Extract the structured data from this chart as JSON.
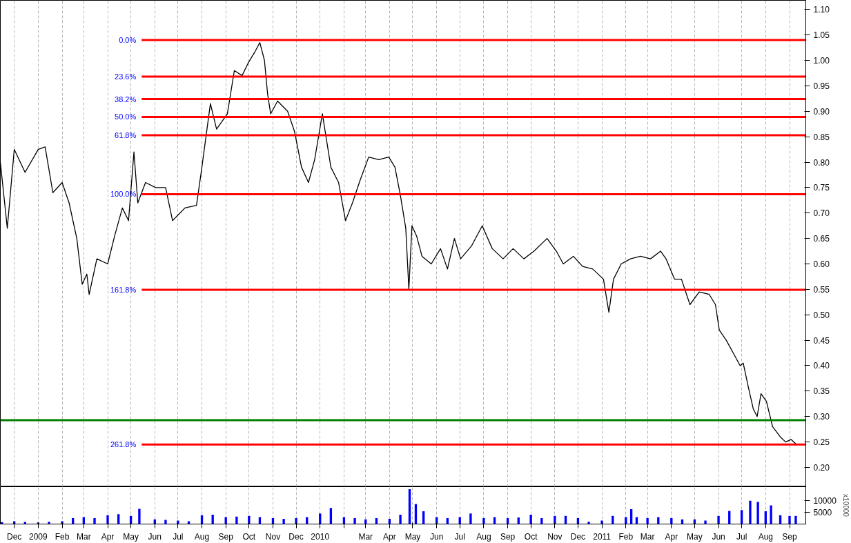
{
  "chart_data": [
    {
      "type": "line",
      "tick_labels": "y",
      "grid": "x",
      "xlim": [
        "2008-11-13",
        "2011-09-22"
      ],
      "ylim": [
        0.162,
        1.118
      ],
      "yticks": [
        {
          "value": 0.2,
          "label": "0.20"
        },
        {
          "value": 0.25,
          "label": "0.25"
        },
        {
          "value": 0.3,
          "label": "0.30"
        },
        {
          "value": 0.35,
          "label": "0.35"
        },
        {
          "value": 0.4,
          "label": "0.40"
        },
        {
          "value": 0.45,
          "label": "0.45"
        },
        {
          "value": 0.5,
          "label": "0.50"
        },
        {
          "value": 0.55,
          "label": "0.55"
        },
        {
          "value": 0.6,
          "label": "0.60"
        },
        {
          "value": 0.65,
          "label": "0.65"
        },
        {
          "value": 0.7,
          "label": "0.70"
        },
        {
          "value": 0.75,
          "label": "0.75"
        },
        {
          "value": 0.8,
          "label": "0.80"
        },
        {
          "value": 0.85,
          "label": "0.85"
        },
        {
          "value": 0.9,
          "label": "0.90"
        },
        {
          "value": 0.95,
          "label": "0.95"
        },
        {
          "value": 1.0,
          "label": "1.00"
        },
        {
          "value": 1.05,
          "label": "1.05"
        },
        {
          "value": 1.1,
          "label": "1.10"
        }
      ],
      "xticks": [
        {
          "value": "2008-12-01",
          "label": null
        },
        {
          "value": "2009-01-01",
          "label": null
        },
        {
          "value": "2009-02-01",
          "label": null
        },
        {
          "value": "2009-03-01",
          "label": null
        },
        {
          "value": "2009-04-01",
          "label": null
        },
        {
          "value": "2009-05-01",
          "label": null
        },
        {
          "value": "2009-06-01",
          "label": null
        },
        {
          "value": "2009-07-01",
          "label": null
        },
        {
          "value": "2009-08-01",
          "label": null
        },
        {
          "value": "2009-09-01",
          "label": null
        },
        {
          "value": "2009-10-01",
          "label": null
        },
        {
          "value": "2009-11-01",
          "label": null
        },
        {
          "value": "2009-12-01",
          "label": null
        },
        {
          "value": "2010-01-01",
          "label": null
        },
        {
          "value": "2010-02-01",
          "label": null
        },
        {
          "value": "2010-03-01",
          "label": null
        },
        {
          "value": "2010-04-01",
          "label": null
        },
        {
          "value": "2010-05-01",
          "label": null
        },
        {
          "value": "2010-06-01",
          "label": null
        },
        {
          "value": "2010-07-01",
          "label": null
        },
        {
          "value": "2010-08-01",
          "label": null
        },
        {
          "value": "2010-09-01",
          "label": null
        },
        {
          "value": "2010-10-01",
          "label": null
        },
        {
          "value": "2010-11-01",
          "label": null
        },
        {
          "value": "2010-12-01",
          "label": null
        },
        {
          "value": "2011-01-01",
          "label": null
        },
        {
          "value": "2011-02-01",
          "label": null
        },
        {
          "value": "2011-03-01",
          "label": null
        },
        {
          "value": "2011-04-01",
          "label": null
        },
        {
          "value": "2011-05-01",
          "label": null
        },
        {
          "value": "2011-06-01",
          "label": null
        },
        {
          "value": "2011-07-01",
          "label": null
        },
        {
          "value": "2011-08-01",
          "label": null
        },
        {
          "value": "2011-09-01",
          "label": null
        }
      ],
      "series": [
        {
          "color": "#000000",
          "x": [
            "2008-11-13",
            "2008-11-22",
            "2008-12-01",
            "2008-12-15",
            "2009-01-01",
            "2009-01-10",
            "2009-01-20",
            "2009-02-01",
            "2009-02-10",
            "2009-02-20",
            "2009-02-27",
            "2009-03-05",
            "2009-03-08",
            "2009-03-18",
            "2009-04-01",
            "2009-04-10",
            "2009-04-20",
            "2009-04-28",
            "2009-05-05",
            "2009-05-10",
            "2009-05-20",
            "2009-06-02",
            "2009-06-15",
            "2009-06-24",
            "2009-07-10",
            "2009-07-25",
            "2009-08-01",
            "2009-08-12",
            "2009-08-20",
            "2009-09-03",
            "2009-09-12",
            "2009-09-22",
            "2009-09-30",
            "2009-10-08",
            "2009-10-15",
            "2009-10-21",
            "2009-10-25",
            "2009-10-29",
            "2009-11-07",
            "2009-11-20",
            "2009-11-29",
            "2009-12-08",
            "2009-12-17",
            "2009-12-25",
            "2010-01-04",
            "2010-01-15",
            "2010-01-25",
            "2010-02-03",
            "2010-02-12",
            "2010-02-22",
            "2010-03-05",
            "2010-03-18",
            "2010-03-31",
            "2010-04-08",
            "2010-04-15",
            "2010-04-22",
            "2010-04-26",
            "2010-04-30",
            "2010-05-06",
            "2010-05-13",
            "2010-05-25",
            "2010-06-06",
            "2010-06-15",
            "2010-06-24",
            "2010-07-02",
            "2010-07-16",
            "2010-07-30",
            "2010-08-12",
            "2010-08-26",
            "2010-09-08",
            "2010-09-22",
            "2010-10-05",
            "2010-10-22",
            "2010-11-03",
            "2010-11-12",
            "2010-11-25",
            "2010-12-07",
            "2010-12-20",
            "2011-01-03",
            "2011-01-10",
            "2011-01-16",
            "2011-01-26",
            "2011-02-07",
            "2011-02-20",
            "2011-03-05",
            "2011-03-18",
            "2011-03-25",
            "2011-04-05",
            "2011-04-14",
            "2011-04-25",
            "2011-05-07",
            "2011-05-20",
            "2011-05-28",
            "2011-06-02",
            "2011-06-11",
            "2011-06-20",
            "2011-06-29",
            "2011-07-03",
            "2011-07-10",
            "2011-07-16",
            "2011-07-21",
            "2011-07-26",
            "2011-08-02",
            "2011-08-10",
            "2011-08-20",
            "2011-08-27",
            "2011-09-03",
            "2011-09-10"
          ],
          "values": [
            0.8,
            0.67,
            0.825,
            0.78,
            0.825,
            0.83,
            0.74,
            0.76,
            0.72,
            0.65,
            0.56,
            0.58,
            0.54,
            0.61,
            0.6,
            0.655,
            0.71,
            0.685,
            0.82,
            0.72,
            0.76,
            0.75,
            0.75,
            0.685,
            0.71,
            0.715,
            0.79,
            0.915,
            0.865,
            0.895,
            0.98,
            0.97,
            0.995,
            1.015,
            1.035,
            1.0,
            0.935,
            0.895,
            0.92,
            0.9,
            0.86,
            0.79,
            0.76,
            0.805,
            0.895,
            0.79,
            0.76,
            0.685,
            0.72,
            0.765,
            0.81,
            0.805,
            0.81,
            0.79,
            0.735,
            0.67,
            0.55,
            0.675,
            0.655,
            0.615,
            0.6,
            0.63,
            0.59,
            0.65,
            0.61,
            0.635,
            0.675,
            0.63,
            0.61,
            0.63,
            0.61,
            0.625,
            0.65,
            0.625,
            0.6,
            0.615,
            0.595,
            0.59,
            0.57,
            0.505,
            0.57,
            0.6,
            0.61,
            0.615,
            0.61,
            0.625,
            0.61,
            0.57,
            0.57,
            0.52,
            0.545,
            0.54,
            0.52,
            0.47,
            0.45,
            0.425,
            0.4,
            0.405,
            0.355,
            0.315,
            0.3,
            0.345,
            0.33,
            0.28,
            0.26,
            0.25,
            0.255,
            0.245
          ]
        },
        {
          "color": "#ff0000",
          "x": [
            "2009-05-15",
            "2011-09-22"
          ],
          "values": [
            1.04,
            1.04
          ]
        },
        {
          "color": "#ff0000",
          "x": [
            "2009-05-15",
            "2011-09-22"
          ],
          "values": [
            0.968,
            0.968
          ]
        },
        {
          "color": "#ff0000",
          "x": [
            "2009-05-15",
            "2011-09-22"
          ],
          "values": [
            0.924,
            0.924
          ]
        },
        {
          "color": "#ff0000",
          "x": [
            "2009-05-15",
            "2011-09-22"
          ],
          "values": [
            0.889,
            0.889
          ]
        },
        {
          "color": "#ff0000",
          "x": [
            "2009-05-15",
            "2011-09-22"
          ],
          "values": [
            0.853,
            0.853
          ]
        },
        {
          "color": "#ff0000",
          "x": [
            "2009-05-15",
            "2011-09-22"
          ],
          "values": [
            0.737,
            0.737
          ]
        },
        {
          "color": "#ff0000",
          "x": [
            "2009-05-15",
            "2011-09-22"
          ],
          "values": [
            0.549,
            0.549
          ]
        },
        {
          "color": "#ff0000",
          "x": [
            "2009-05-15",
            "2011-09-22"
          ],
          "values": [
            0.245,
            0.245
          ]
        }
      ],
      "ref_lines": [
        {
          "axis": "y",
          "value": 0.293,
          "color": "#008000"
        }
      ],
      "annotations": [
        {
          "text": "0.0%",
          "x": "2009-05-15",
          "y": 1.04
        },
        {
          "text": "23.6%",
          "x": "2009-05-15",
          "y": 0.968
        },
        {
          "text": "38.2%",
          "x": "2009-05-15",
          "y": 0.924
        },
        {
          "text": "50.0%",
          "x": "2009-05-15",
          "y": 0.889
        },
        {
          "text": "61.8%",
          "x": "2009-05-15",
          "y": 0.853
        },
        {
          "text": "100.0%",
          "x": "2009-05-15",
          "y": 0.737
        },
        {
          "text": "161.8%",
          "x": "2009-05-15",
          "y": 0.549
        },
        {
          "text": "261.8%",
          "x": "2009-05-15",
          "y": 0.245
        }
      ]
    },
    {
      "type": "bar",
      "grid": "x",
      "color": "#0000ff",
      "ylabel": "x10000",
      "xlim": [
        "2008-11-13",
        "2011-09-22"
      ],
      "ylim": [
        0,
        16000
      ],
      "yticks": [
        5000,
        10000
      ],
      "xticks": [
        {
          "value": "2008-12-01",
          "label": "Dec"
        },
        {
          "value": "2009-01-01",
          "label": "2009"
        },
        {
          "value": "2009-02-01",
          "label": "Feb"
        },
        {
          "value": "2009-03-01",
          "label": "Mar"
        },
        {
          "value": "2009-04-01",
          "label": "Apr"
        },
        {
          "value": "2009-05-01",
          "label": "May"
        },
        {
          "value": "2009-06-01",
          "label": "Jun"
        },
        {
          "value": "2009-07-01",
          "label": "Jul"
        },
        {
          "value": "2009-08-01",
          "label": "Aug"
        },
        {
          "value": "2009-09-01",
          "label": "Sep"
        },
        {
          "value": "2009-10-01",
          "label": "Oct"
        },
        {
          "value": "2009-11-01",
          "label": "Nov"
        },
        {
          "value": "2009-12-01",
          "label": "Dec"
        },
        {
          "value": "2010-01-01",
          "label": "2010"
        },
        {
          "value": "2010-02-01",
          "label": null
        },
        {
          "value": "2010-03-01",
          "label": "Mar"
        },
        {
          "value": "2010-04-01",
          "label": "Apr"
        },
        {
          "value": "2010-05-01",
          "label": "May"
        },
        {
          "value": "2010-06-01",
          "label": "Jun"
        },
        {
          "value": "2010-07-01",
          "label": "Jul"
        },
        {
          "value": "2010-08-01",
          "label": "Aug"
        },
        {
          "value": "2010-09-01",
          "label": "Sep"
        },
        {
          "value": "2010-10-01",
          "label": "Oct"
        },
        {
          "value": "2010-11-01",
          "label": "Nov"
        },
        {
          "value": "2010-12-01",
          "label": "Dec"
        },
        {
          "value": "2011-01-01",
          "label": "2011"
        },
        {
          "value": "2011-02-01",
          "label": "Feb"
        },
        {
          "value": "2011-03-01",
          "label": "Mar"
        },
        {
          "value": "2011-04-01",
          "label": "Apr"
        },
        {
          "value": "2011-05-01",
          "label": "May"
        },
        {
          "value": "2011-06-01",
          "label": "Jun"
        },
        {
          "value": "2011-07-01",
          "label": "Jul"
        },
        {
          "value": "2011-08-01",
          "label": "Aug"
        },
        {
          "value": "2011-09-01",
          "label": "Sep"
        }
      ],
      "x": [
        "2008-11-15",
        "2008-12-01",
        "2008-12-15",
        "2009-01-01",
        "2009-01-15",
        "2009-02-01",
        "2009-02-15",
        "2009-03-01",
        "2009-03-15",
        "2009-04-01",
        "2009-04-15",
        "2009-05-01",
        "2009-05-12",
        "2009-06-01",
        "2009-06-15",
        "2009-07-01",
        "2009-07-15",
        "2009-08-01",
        "2009-08-15",
        "2009-09-01",
        "2009-09-15",
        "2009-10-01",
        "2009-10-15",
        "2009-11-01",
        "2009-11-15",
        "2009-12-01",
        "2009-12-15",
        "2010-01-01",
        "2010-01-15",
        "2010-02-01",
        "2010-02-15",
        "2010-03-01",
        "2010-03-15",
        "2010-04-01",
        "2010-04-15",
        "2010-04-27",
        "2010-05-05",
        "2010-05-15",
        "2010-06-01",
        "2010-06-15",
        "2010-07-01",
        "2010-07-15",
        "2010-08-01",
        "2010-08-15",
        "2010-09-01",
        "2010-09-15",
        "2010-10-01",
        "2010-10-15",
        "2010-11-01",
        "2010-11-15",
        "2010-12-01",
        "2010-12-15",
        "2011-01-01",
        "2011-01-15",
        "2011-02-01",
        "2011-02-08",
        "2011-02-15",
        "2011-03-01",
        "2011-03-15",
        "2011-04-01",
        "2011-04-15",
        "2011-05-01",
        "2011-05-15",
        "2011-06-01",
        "2011-06-15",
        "2011-07-01",
        "2011-07-12",
        "2011-07-22",
        "2011-08-01",
        "2011-08-08",
        "2011-08-20",
        "2011-09-01",
        "2011-09-09"
      ],
      "values": [
        800,
        1200,
        900,
        700,
        1000,
        1200,
        2500,
        3000,
        2500,
        3800,
        4200,
        3500,
        6500,
        2000,
        1800,
        1500,
        1200,
        3800,
        4000,
        3000,
        3200,
        3500,
        3000,
        2500,
        2200,
        2500,
        3000,
        4500,
        6900,
        3000,
        2500,
        2000,
        2500,
        2200,
        4000,
        15000,
        8600,
        5500,
        3000,
        2500,
        3000,
        4500,
        2500,
        3000,
        2500,
        2800,
        4000,
        2500,
        3500,
        3500,
        2500,
        1000,
        1500,
        3500,
        3000,
        6400,
        3000,
        2500,
        3000,
        2500,
        2000,
        2000,
        1500,
        3500,
        5600,
        6000,
        10000,
        9500,
        5500,
        8000,
        3800,
        3500,
        3500
      ]
    }
  ]
}
